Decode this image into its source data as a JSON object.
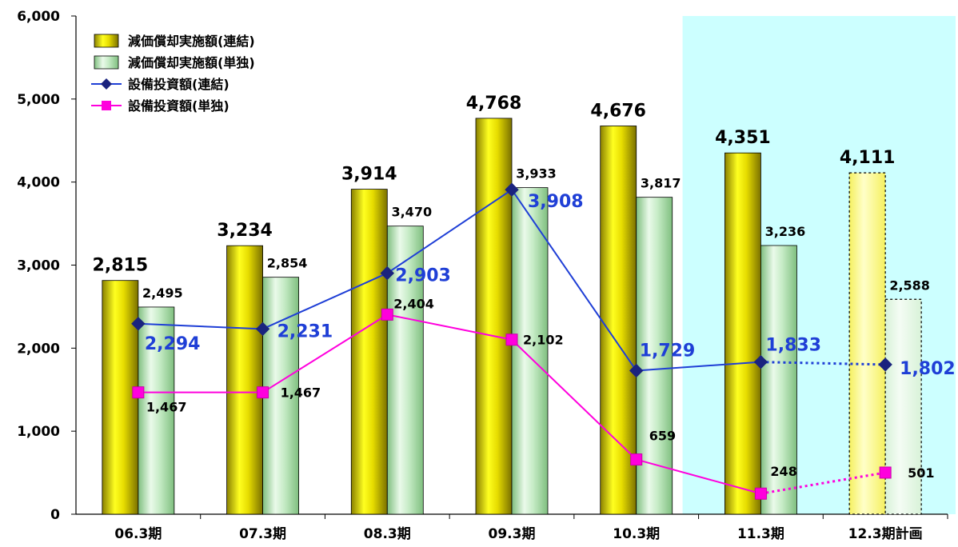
{
  "chart_data": {
    "type": "bar",
    "categories": [
      "06.3期",
      "07.3期",
      "08.3期",
      "09.3期",
      "10.3期",
      "11.3期",
      "12.3期計画"
    ],
    "ylim": [
      0,
      6000
    ],
    "yticks": [
      "0",
      "1,000",
      "2,000",
      "3,000",
      "4,000",
      "5,000",
      "6,000"
    ],
    "ytick_values": [
      0,
      1000,
      2000,
      3000,
      4000,
      5000,
      6000
    ],
    "highlight_categories": [
      "11.3期",
      "12.3期計画"
    ],
    "plan_category": "12.3期計画",
    "legend_position": "top-left",
    "series": [
      {
        "name": "減価償却実施額(連結)",
        "type": "bar",
        "values": [
          2815,
          3234,
          3914,
          4768,
          4676,
          4351,
          4111
        ],
        "labels": [
          "2,815",
          "3,234",
          "3,914",
          "4,768",
          "4,676",
          "4,351",
          "4,111"
        ],
        "color": "#d4c800"
      },
      {
        "name": "減価償却実施額(単独)",
        "type": "bar",
        "values": [
          2495,
          2854,
          3470,
          3933,
          3817,
          3236,
          2588
        ],
        "labels": [
          "2,495",
          "2,854",
          "3,470",
          "3,933",
          "3,817",
          "3,236",
          "2,588"
        ],
        "color": "#b8e4b8"
      },
      {
        "name": "設備投資額(連結)",
        "type": "line",
        "values": [
          2294,
          2231,
          2903,
          3908,
          1729,
          1833,
          1802
        ],
        "labels": [
          "2,294",
          "2,231",
          "2,903",
          "3,908",
          "1,729",
          "1,833",
          "1,802"
        ],
        "color": "#1f3fd6",
        "marker": "diamond"
      },
      {
        "name": "設備投資額(単独)",
        "type": "line",
        "values": [
          1467,
          1467,
          2404,
          2102,
          659,
          248,
          501
        ],
        "labels": [
          "1,467",
          "1,467",
          "2,404",
          "2,102",
          "659",
          "248",
          "501"
        ],
        "color": "#ff00dd",
        "marker": "square"
      }
    ]
  }
}
